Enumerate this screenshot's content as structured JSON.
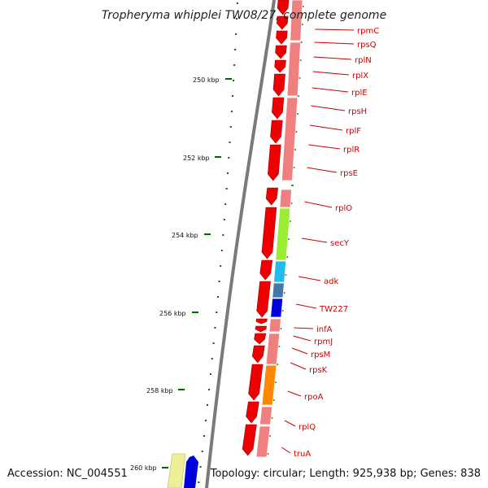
{
  "title": "Tropheryma whipplei TW08/27, complete genome",
  "accession": "Accession: NC_004551",
  "summary": "Topology: circular; Length: 925,938 bp; Genes: 838",
  "colors": {
    "backbone": "#808080",
    "gene_red": "#ee0000",
    "gene_pink": "#f08080",
    "gene_lime": "#99ee33",
    "gene_sky": "#22bbee",
    "gene_blue": "#0000dd",
    "gene_steel": "#4477aa",
    "gene_orange": "#ff8800",
    "gene_cream": "#eeee99",
    "tick": "#006600",
    "label": "#cc0000"
  },
  "tick_labels": [
    "250 kbp",
    "252 kbp",
    "254 kbp",
    "256 kbp",
    "258 kbp",
    "260 kbp"
  ],
  "genes": [
    "rpmC",
    "rpsQ",
    "rplN",
    "rplX",
    "rplE",
    "rpsH",
    "rplF",
    "rplR",
    "rpsE",
    "rplO",
    "secY",
    "adk",
    "TW227",
    "infA",
    "rpmJ",
    "rpsM",
    "rpsK",
    "rpoA",
    "rplQ",
    "truA"
  ]
}
